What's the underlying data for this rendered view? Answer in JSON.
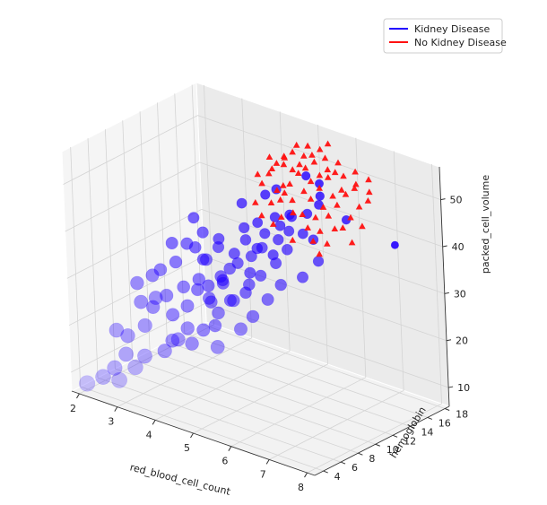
{
  "chart_data": {
    "type": "scatter",
    "projection": "3d",
    "title": "",
    "xlabel": "red_blood_cell_count",
    "ylabel": "hemoglobin",
    "zlabel": "packed_cell_volume",
    "xlim": [
      1.8,
      8.2
    ],
    "ylim": [
      3,
      18.5
    ],
    "zlim": [
      6,
      57
    ],
    "xticks": [
      "2",
      "3",
      "4",
      "5",
      "6",
      "7",
      "8"
    ],
    "yticks": [
      "4",
      "6",
      "8",
      "10",
      "12",
      "14",
      "16",
      "18"
    ],
    "zticks": [
      "10",
      "20",
      "30",
      "40",
      "50"
    ],
    "grid": true,
    "legend": {
      "placement": "top-right",
      "entries": [
        {
          "label": "Kidney Disease",
          "color": "#2200ff"
        },
        {
          "label": "No Kidney Disease",
          "color": "#ff1111"
        }
      ]
    },
    "series": [
      {
        "name": "Kidney Disease",
        "color": "#2200ff",
        "marker": "circle",
        "points": [
          [
            2.1,
            3.5,
            8
          ],
          [
            2.5,
            5.0,
            11
          ],
          [
            2.7,
            5.5,
            14
          ],
          [
            2.6,
            6.2,
            17
          ],
          [
            3.0,
            6.5,
            20
          ],
          [
            3.0,
            7.5,
            23
          ],
          [
            3.2,
            7.0,
            26
          ],
          [
            2.9,
            8.0,
            29
          ],
          [
            3.4,
            8.0,
            22
          ],
          [
            3.6,
            8.5,
            28
          ],
          [
            3.3,
            9.0,
            32
          ],
          [
            3.8,
            8.0,
            25
          ],
          [
            3.9,
            9.0,
            30
          ],
          [
            4.0,
            9.5,
            34
          ],
          [
            3.5,
            9.5,
            36
          ],
          [
            3.8,
            10.0,
            33
          ],
          [
            4.2,
            9.0,
            26
          ],
          [
            4.3,
            10.0,
            30
          ],
          [
            4.5,
            10.0,
            33
          ],
          [
            4.1,
            10.5,
            36
          ],
          [
            4.4,
            11.0,
            35
          ],
          [
            4.6,
            11.5,
            38
          ],
          [
            4.8,
            11.0,
            32
          ],
          [
            4.9,
            11.5,
            37
          ],
          [
            5.0,
            12.0,
            40
          ],
          [
            5.2,
            12.0,
            36
          ],
          [
            4.7,
            12.5,
            41
          ],
          [
            5.3,
            12.5,
            42
          ],
          [
            5.5,
            13.0,
            44
          ],
          [
            3.6,
            7.0,
            18
          ],
          [
            3.2,
            5.5,
            15
          ],
          [
            4.0,
            7.5,
            18
          ],
          [
            4.2,
            8.0,
            21
          ],
          [
            4.5,
            8.5,
            25
          ],
          [
            4.8,
            9.0,
            28
          ],
          [
            5.0,
            10.0,
            31
          ],
          [
            5.2,
            10.5,
            33
          ],
          [
            5.5,
            11.0,
            36
          ],
          [
            5.7,
            11.5,
            39
          ],
          [
            5.9,
            12.5,
            42
          ],
          [
            4.6,
            9.5,
            27
          ],
          [
            4.4,
            8.5,
            22
          ],
          [
            3.9,
            7.5,
            21
          ],
          [
            3.5,
            6.5,
            16
          ],
          [
            3.8,
            6.8,
            19
          ],
          [
            4.1,
            9.2,
            29
          ],
          [
            4.3,
            9.8,
            31
          ],
          [
            4.6,
            10.5,
            34
          ],
          [
            4.9,
            10.8,
            36
          ],
          [
            5.1,
            11.2,
            38
          ],
          [
            5.4,
            11.8,
            40
          ],
          [
            5.6,
            12.2,
            42
          ],
          [
            5.8,
            13.5,
            45
          ],
          [
            6.0,
            14.0,
            47
          ],
          [
            5.0,
            13.5,
            48
          ],
          [
            4.3,
            12.5,
            44
          ],
          [
            3.7,
            10.5,
            38
          ],
          [
            3.4,
            10.8,
            40
          ],
          [
            3.1,
            9.5,
            35
          ],
          [
            2.8,
            7.0,
            24
          ],
          [
            2.3,
            4.5,
            9
          ],
          [
            2.8,
            4.2,
            10
          ],
          [
            3.1,
            4.8,
            13
          ],
          [
            4.8,
            7.0,
            20
          ],
          [
            5.2,
            8.0,
            24
          ],
          [
            5.6,
            9.5,
            30
          ],
          [
            5.8,
            10.2,
            33
          ],
          [
            6.2,
            11.0,
            35
          ],
          [
            6.4,
            12.0,
            38
          ],
          [
            7.4,
            16.5,
            40
          ],
          [
            4.5,
            11.8,
            40
          ],
          [
            4.0,
            11.0,
            37
          ],
          [
            3.6,
            10.0,
            35
          ],
          [
            5.3,
            9.0,
            26
          ],
          [
            5.8,
            15.0,
            50
          ],
          [
            5.5,
            14.8,
            51
          ],
          [
            4.9,
            10.0,
            29
          ],
          [
            4.2,
            8.8,
            27
          ],
          [
            3.3,
            7.8,
            26
          ],
          [
            3.0,
            8.5,
            30
          ],
          [
            2.6,
            7.5,
            27
          ],
          [
            2.4,
            5.8,
            18
          ],
          [
            4.7,
            13.5,
            46
          ],
          [
            5.1,
            12.8,
            43
          ],
          [
            5.4,
            13.2,
            44
          ],
          [
            6.1,
            12.8,
            41
          ],
          [
            6.6,
            14.5,
            45
          ],
          [
            5.9,
            14.6,
            48
          ],
          [
            4.4,
            9.6,
            30
          ],
          [
            3.9,
            8.8,
            28
          ]
        ]
      },
      {
        "name": "No Kidney Disease",
        "color": "#ff1111",
        "marker": "triangle",
        "points": [
          [
            4.6,
            13.6,
            48
          ],
          [
            4.7,
            14.0,
            50
          ],
          [
            4.8,
            14.5,
            52
          ],
          [
            4.9,
            15.0,
            53
          ],
          [
            5.0,
            15.5,
            54
          ],
          [
            5.1,
            13.5,
            46
          ],
          [
            5.2,
            14.2,
            49
          ],
          [
            5.3,
            14.8,
            51
          ],
          [
            5.4,
            15.2,
            52
          ],
          [
            5.5,
            15.8,
            53
          ],
          [
            5.6,
            13.8,
            44
          ],
          [
            5.7,
            14.4,
            47
          ],
          [
            5.8,
            15.0,
            49
          ],
          [
            5.9,
            15.6,
            51
          ],
          [
            6.0,
            16.0,
            52
          ],
          [
            6.1,
            13.6,
            42
          ],
          [
            6.2,
            14.2,
            45
          ],
          [
            6.3,
            14.8,
            47
          ],
          [
            6.4,
            15.4,
            49
          ],
          [
            6.5,
            16.0,
            50
          ],
          [
            4.5,
            13.2,
            44
          ],
          [
            4.7,
            13.0,
            42
          ],
          [
            4.9,
            13.3,
            45
          ],
          [
            5.1,
            14.0,
            47
          ],
          [
            5.3,
            15.5,
            54
          ],
          [
            5.5,
            16.5,
            55
          ],
          [
            5.7,
            16.2,
            54
          ],
          [
            5.9,
            16.8,
            53
          ],
          [
            6.1,
            16.5,
            51
          ],
          [
            6.3,
            17.0,
            52
          ],
          [
            6.5,
            14.5,
            43
          ],
          [
            6.6,
            15.0,
            45
          ],
          [
            6.7,
            15.6,
            47
          ],
          [
            6.8,
            16.2,
            48
          ],
          [
            6.0,
            13.2,
            40
          ],
          [
            5.8,
            13.5,
            42
          ],
          [
            5.4,
            13.6,
            44
          ],
          [
            5.2,
            13.1,
            43
          ],
          [
            5.0,
            14.3,
            48
          ],
          [
            4.8,
            15.3,
            51
          ],
          [
            4.6,
            14.8,
            50
          ],
          [
            4.4,
            14.0,
            49
          ],
          [
            5.6,
            14.9,
            50
          ],
          [
            5.4,
            16.0,
            54
          ],
          [
            5.2,
            16.4,
            55
          ],
          [
            6.2,
            15.8,
            49
          ],
          [
            6.4,
            16.6,
            50
          ],
          [
            6.6,
            17.2,
            51
          ],
          [
            5.0,
            13.0,
            41
          ],
          [
            5.5,
            13.0,
            39
          ],
          [
            6.8,
            14.2,
            41
          ],
          [
            5.3,
            14.0,
            46
          ],
          [
            5.1,
            15.0,
            51
          ],
          [
            4.9,
            14.0,
            47
          ],
          [
            5.7,
            15.5,
            51
          ],
          [
            6.0,
            14.5,
            46
          ],
          [
            6.2,
            13.0,
            38
          ],
          [
            5.9,
            14.0,
            44
          ],
          [
            4.7,
            15.8,
            52
          ],
          [
            5.6,
            17.0,
            56
          ],
          [
            6.4,
            14.0,
            43
          ],
          [
            6.7,
            16.8,
            49
          ],
          [
            5.8,
            16.0,
            52
          ],
          [
            5.2,
            15.4,
            52
          ],
          [
            4.5,
            15.0,
            52
          ],
          [
            6.9,
            15.0,
            44
          ],
          [
            6.1,
            15.2,
            48
          ],
          [
            5.0,
            16.0,
            55
          ],
          [
            6.3,
            13.5,
            40
          ],
          [
            5.5,
            14.5,
            48
          ]
        ]
      }
    ]
  }
}
